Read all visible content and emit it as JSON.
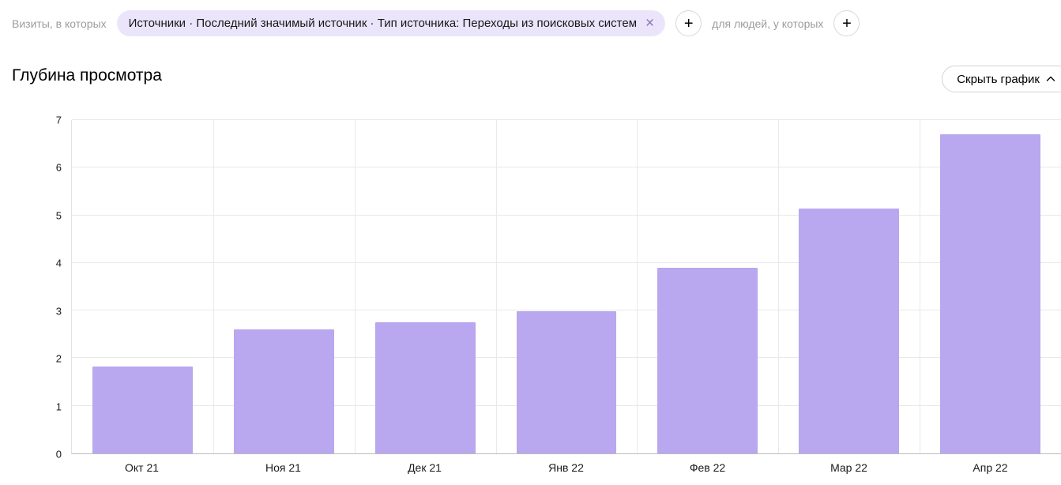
{
  "filter_bar": {
    "visits_label": "Визиты, в которых",
    "chip": {
      "text": "Источники · Последний значимый источник · Тип источника: Переходы из поисковых систем",
      "close_icon": "×"
    },
    "add_visit_condition": "+",
    "people_label": "для людей, у которых",
    "add_people_condition": "+"
  },
  "header": {
    "title": "Глубина просмотра",
    "hide_chart_label": "Скрыть график"
  },
  "chart_data": {
    "type": "bar",
    "title": "Глубина просмотра",
    "categories": [
      "Окт 21",
      "Ноя 21",
      "Дек 21",
      "Янв 22",
      "Фев 22",
      "Мар 22",
      "Апр 22"
    ],
    "values": [
      1.82,
      2.6,
      2.75,
      2.98,
      3.9,
      5.15,
      6.7
    ],
    "xlabel": "",
    "ylabel": "",
    "ylim": [
      0,
      7
    ],
    "yticks": [
      0,
      1,
      2,
      3,
      4,
      5,
      6,
      7
    ],
    "grid": true,
    "legend": "none",
    "bar_color": "#b9a7ef"
  },
  "colors": {
    "chip_bg": "#ebe5fb",
    "bar": "#b9a7ef",
    "grid": "#e9e9e9",
    "axis": "#bdbdbd",
    "muted_text": "#9c9c9c"
  }
}
